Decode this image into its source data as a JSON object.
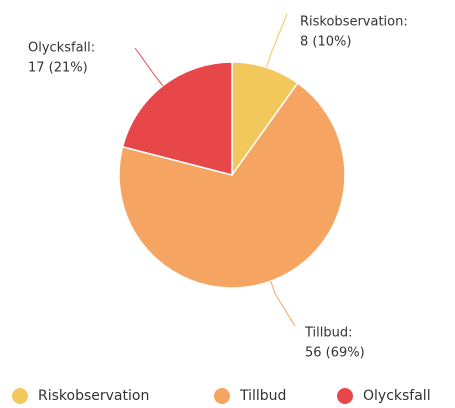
{
  "chart_data": {
    "type": "pie",
    "categories": [
      "Riskobservation",
      "Tillbud",
      "Olycksfall"
    ],
    "values": [
      8,
      56,
      17
    ],
    "value_labels": [
      [
        "Riskobservation:",
        "8 (10%)"
      ],
      [
        "Tillbud:",
        "56 (69%)"
      ],
      [
        "Olycksfall:",
        "17 (21%)"
      ]
    ],
    "colors": [
      "#f2c75c",
      "#f5a462",
      "#e8474a"
    ],
    "legend": "bottom"
  }
}
